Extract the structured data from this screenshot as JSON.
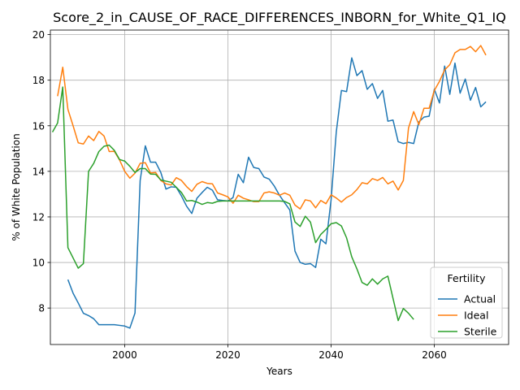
{
  "chart_data": {
    "type": "line",
    "title": "Score_2_in_CAUSE_OF_RACE_DIFFERENCES_INBORN_for_White_Q1_IQ",
    "xlabel": "Years",
    "ylabel": "% of White Population",
    "xlim": [
      1985.6,
      2074.4
    ],
    "ylim": [
      6.4,
      20.2
    ],
    "xticks": [
      2000,
      2020,
      2040,
      2060
    ],
    "yticks": [
      8,
      10,
      12,
      14,
      16,
      18,
      20
    ],
    "grid": true,
    "legend": {
      "title": "Fertility",
      "placement": "lower-right"
    },
    "series": [
      {
        "name": "Actual",
        "color": "#1f77b4",
        "x": [
          1989,
          1990,
          1991,
          1992,
          1993,
          1994,
          1995,
          1996,
          1997,
          1998,
          1999,
          2000,
          2001,
          2002,
          2003,
          2004,
          2005,
          2006,
          2007,
          2008,
          2009,
          2010,
          2011,
          2012,
          2013,
          2014,
          2015,
          2016,
          2017,
          2018,
          2019,
          2020,
          2021,
          2022,
          2023,
          2024,
          2025,
          2026,
          2027,
          2028,
          2029,
          2030,
          2031,
          2032,
          2033,
          2034,
          2035,
          2036,
          2037,
          2038,
          2039,
          2040,
          2041,
          2042,
          2043,
          2044,
          2045,
          2046,
          2047,
          2048,
          2049,
          2050,
          2051,
          2052,
          2053,
          2054,
          2055,
          2056,
          2057,
          2058,
          2059,
          2060,
          2061,
          2062,
          2063,
          2064,
          2065,
          2066,
          2067,
          2068,
          2069,
          2070
        ],
        "values": [
          9.25,
          8.65,
          8.22,
          7.77,
          7.67,
          7.53,
          7.27,
          7.27,
          7.27,
          7.27,
          7.24,
          7.21,
          7.12,
          7.78,
          13.6,
          15.12,
          14.4,
          14.4,
          13.95,
          13.22,
          13.32,
          13.3,
          12.92,
          12.47,
          12.15,
          12.82,
          13.07,
          13.3,
          13.17,
          12.75,
          12.72,
          12.7,
          12.85,
          13.87,
          13.5,
          14.62,
          14.17,
          14.12,
          13.75,
          13.66,
          13.35,
          12.95,
          12.62,
          12.3,
          10.5,
          10.0,
          9.92,
          9.95,
          9.78,
          11.02,
          10.82,
          12.75,
          15.72,
          17.55,
          17.5,
          18.98,
          18.2,
          18.42,
          17.6,
          17.85,
          17.2,
          17.55,
          16.2,
          16.25,
          15.3,
          15.22,
          15.27,
          15.22,
          16.17,
          16.38,
          16.42,
          17.6,
          17.0,
          18.62,
          17.38,
          18.75,
          17.43,
          18.05,
          17.12,
          17.68,
          16.83,
          17.05
        ]
      },
      {
        "name": "Ideal",
        "color": "#ff7f0e",
        "x": [
          1987,
          1988,
          1989,
          1990,
          1991,
          1992,
          1993,
          1994,
          1995,
          1996,
          1997,
          1998,
          1999,
          2000,
          2001,
          2002,
          2003,
          2004,
          2005,
          2006,
          2007,
          2008,
          2009,
          2010,
          2011,
          2012,
          2013,
          2014,
          2015,
          2016,
          2017,
          2018,
          2019,
          2020,
          2021,
          2022,
          2023,
          2024,
          2025,
          2026,
          2027,
          2028,
          2029,
          2030,
          2031,
          2032,
          2033,
          2034,
          2035,
          2036,
          2037,
          2038,
          2039,
          2040,
          2041,
          2042,
          2043,
          2044,
          2045,
          2046,
          2047,
          2048,
          2049,
          2050,
          2051,
          2052,
          2053,
          2054,
          2055,
          2056,
          2057,
          2058,
          2059,
          2060,
          2061,
          2062,
          2063,
          2064,
          2065,
          2066,
          2067,
          2068,
          2069,
          2070
        ],
        "values": [
          17.3,
          18.57,
          16.72,
          16.0,
          15.25,
          15.2,
          15.55,
          15.35,
          15.75,
          15.55,
          14.87,
          14.88,
          14.5,
          14.0,
          13.7,
          13.92,
          14.35,
          14.38,
          13.93,
          13.95,
          13.6,
          13.45,
          13.4,
          13.72,
          13.6,
          13.33,
          13.12,
          13.43,
          13.55,
          13.47,
          13.45,
          13.05,
          12.97,
          12.88,
          12.6,
          12.95,
          12.82,
          12.75,
          12.67,
          12.67,
          13.05,
          13.1,
          13.05,
          12.95,
          13.05,
          12.95,
          12.52,
          12.35,
          12.75,
          12.7,
          12.4,
          12.72,
          12.58,
          12.97,
          12.83,
          12.65,
          12.85,
          12.97,
          13.2,
          13.5,
          13.45,
          13.68,
          13.6,
          13.73,
          13.45,
          13.57,
          13.18,
          13.6,
          15.9,
          16.62,
          16.05,
          16.77,
          16.77,
          17.55,
          17.95,
          18.45,
          18.68,
          19.2,
          19.35,
          19.35,
          19.48,
          19.25,
          19.52,
          19.1
        ]
      },
      {
        "name": "Sterile",
        "color": "#2ca02c",
        "x": [
          1986,
          1987,
          1988,
          1989,
          1990,
          1991,
          1992,
          1993,
          1994,
          1995,
          1996,
          1997,
          1998,
          1999,
          2000,
          2001,
          2002,
          2003,
          2004,
          2005,
          2006,
          2007,
          2008,
          2009,
          2010,
          2011,
          2012,
          2013,
          2014,
          2015,
          2016,
          2017,
          2018,
          2019,
          2020,
          2021,
          2022,
          2023,
          2024,
          2025,
          2026,
          2027,
          2028,
          2029,
          2030,
          2031,
          2032,
          2033,
          2034,
          2035,
          2036,
          2037,
          2038,
          2039,
          2040,
          2041,
          2042,
          2043,
          2044,
          2045,
          2046,
          2047,
          2048,
          2049,
          2050,
          2051,
          2052,
          2053,
          2054,
          2055,
          2056
        ],
        "values": [
          15.72,
          16.12,
          17.7,
          10.65,
          10.2,
          9.75,
          9.95,
          14.0,
          14.35,
          14.87,
          15.1,
          15.15,
          14.92,
          14.52,
          14.45,
          14.22,
          13.95,
          14.12,
          14.12,
          13.88,
          13.87,
          13.62,
          13.57,
          13.52,
          13.3,
          13.07,
          12.7,
          12.72,
          12.65,
          12.55,
          12.63,
          12.6,
          12.68,
          12.7,
          12.7,
          12.7,
          12.7,
          12.7,
          12.7,
          12.7,
          12.7,
          12.7,
          12.7,
          12.7,
          12.7,
          12.68,
          12.57,
          11.78,
          11.58,
          12.03,
          11.77,
          10.87,
          11.23,
          11.45,
          11.7,
          11.75,
          11.6,
          11.08,
          10.25,
          9.72,
          9.12,
          9.0,
          9.28,
          9.05,
          9.28,
          9.4,
          8.42,
          7.45,
          7.98,
          7.77,
          7.5
        ]
      }
    ]
  }
}
